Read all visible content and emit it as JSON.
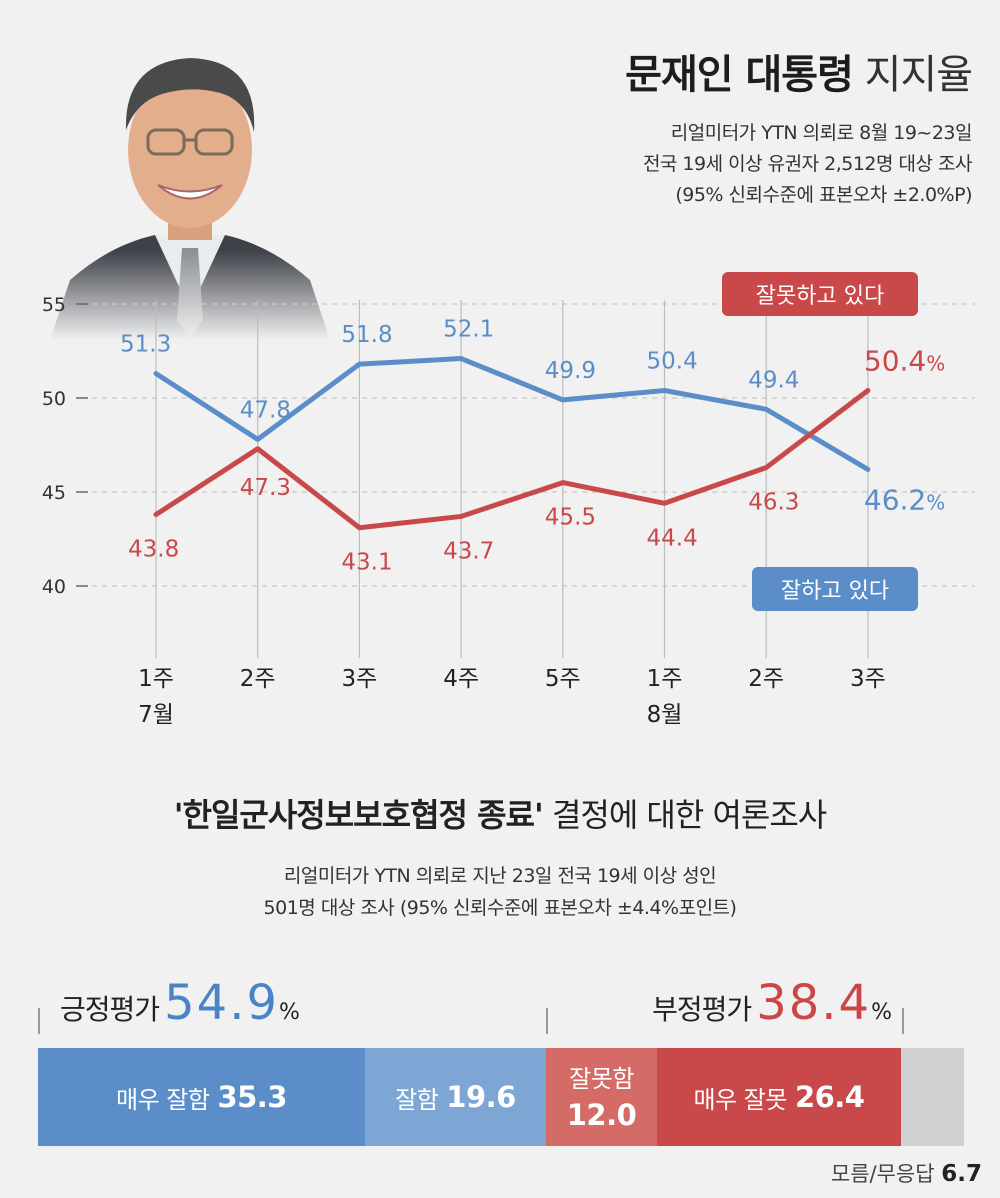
{
  "header": {
    "title_bold": "문재인 대통령",
    "title_light": "지지율",
    "subtitle_lines": [
      "리얼미터가 YTN 의뢰로 8월 19~23일",
      "전국 19세 이상 유권자 2,512명 대상 조사",
      "(95% 신뢰수준에 표본오차 ±2.0%P)"
    ]
  },
  "chart_data": {
    "type": "line",
    "x_ticks": [
      "1주",
      "2주",
      "3주",
      "4주",
      "5주",
      "1주",
      "2주",
      "3주"
    ],
    "x_month_labels": [
      {
        "index": 0,
        "label": "7월"
      },
      {
        "index": 5,
        "label": "8월"
      }
    ],
    "y_ticks": [
      55,
      50,
      45,
      40
    ],
    "ylim": [
      40,
      55
    ],
    "series": [
      {
        "name": "잘하고 있다",
        "color": "#5b8ec8",
        "values": [
          51.3,
          47.8,
          51.8,
          52.1,
          49.9,
          50.4,
          49.4,
          46.2
        ],
        "labels": [
          "51.3",
          "47.8",
          "51.8",
          "52.1",
          "49.9",
          "50.4",
          "49.4",
          "46.2"
        ],
        "last_suffix": "%"
      },
      {
        "name": "잘못하고 있다",
        "color": "#c9494a",
        "values": [
          43.8,
          47.3,
          43.1,
          43.7,
          45.5,
          44.4,
          46.3,
          50.4
        ],
        "labels": [
          "43.8",
          "47.3",
          "43.1",
          "43.7",
          "45.5",
          "44.4",
          "46.3",
          "50.4"
        ],
        "last_suffix": "%"
      }
    ],
    "grid": true
  },
  "survey": {
    "title_bold": "'한일군사정보보호협정 종료'",
    "title_light": "결정에 대한 여론조사",
    "subtitle_lines": [
      "리얼미터가 YTN 의뢰로 지난 23일 전국 19세 이상 성인",
      "501명 대상 조사 (95% 신뢰수준에 표본오차 ±4.4%포인트)"
    ],
    "positive": {
      "label": "긍정평가",
      "value": "54.9",
      "unit": "%"
    },
    "negative": {
      "label": "부정평가",
      "value": "38.4",
      "unit": "%"
    },
    "bars": [
      {
        "label": "매우 잘함",
        "value": "35.3",
        "share": 35.3,
        "color": "#5b8ec8"
      },
      {
        "label": "잘함",
        "value": "19.6",
        "share": 19.6,
        "color": "#7ea6d5"
      },
      {
        "label": "잘못함",
        "value": "12.0",
        "share": 12.0,
        "color": "#d56b67"
      },
      {
        "label": "매우 잘못",
        "value": "26.4",
        "share": 26.4,
        "color": "#c9494a"
      },
      {
        "label": "",
        "value": "",
        "share": 6.7,
        "color": "#d1d1d1"
      }
    ],
    "unknown": {
      "label": "모름/무응답",
      "value": "6.7"
    }
  }
}
